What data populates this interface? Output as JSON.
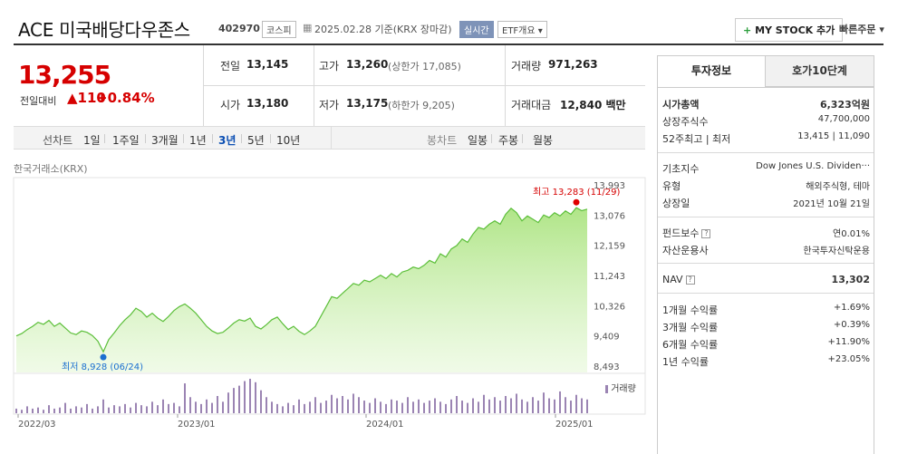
{
  "header": {
    "name": "ACE 미국배당다우존스",
    "code": "402970",
    "market": "코스피",
    "date_text": "2025.02.28 기준(KRX 장마감)",
    "live_badge": "실시간",
    "etf_badge": "ETF개요",
    "mystock_button": "MY STOCK 추가",
    "quick_order": "빠른주문"
  },
  "price": {
    "current": "13,255",
    "change_label": "전일대비",
    "change_value": "110",
    "change_pct": "+0.84%"
  },
  "summary": {
    "prev_label": "전일",
    "prev_value": "13,145",
    "high_label": "고가",
    "high_value": "13,260",
    "upper_limit": "(상한가 17,085)",
    "volume_label": "거래량",
    "volume_value": "971,263",
    "open_label": "시가",
    "open_value": "13,180",
    "low_label": "저가",
    "low_value": "13,175",
    "lower_limit": "(하한가 9,205)",
    "amount_label": "거래대금",
    "amount_value": "12,840 백만"
  },
  "periods": {
    "line_label": "선차트",
    "line_items": [
      "1일",
      "1주일",
      "3개월",
      "1년",
      "3년",
      "5년",
      "10년"
    ],
    "selected": "3년",
    "candle_label": "봉차트",
    "candle_items": [
      "일봉",
      "주봉",
      "월봉"
    ]
  },
  "chart_data": {
    "type": "area",
    "source_label": "한국거래소(KRX)",
    "y_ticks": [
      "13,993",
      "13,076",
      "12,159",
      "11,243",
      "10,326",
      "9,409",
      "8,493"
    ],
    "ylim": [
      8493,
      13993
    ],
    "x_ticks": [
      "2022/03",
      "2023/01",
      "2024/01",
      "2025/01"
    ],
    "max_label": "최고 13,283 (11/29)",
    "min_label": "최저 8,928 (06/24)",
    "volume_label": "거래량",
    "series": [
      {
        "values": [
          9409,
          9480,
          9600,
          9700,
          9820,
          9760,
          9880,
          9700,
          9800,
          9650,
          9500,
          9450,
          9560,
          9520,
          9420,
          9250,
          8928,
          9300,
          9500,
          9720,
          9900,
          10050,
          10250,
          10150,
          9980,
          10100,
          9950,
          9850,
          10000,
          10180,
          10300,
          10380,
          10250,
          10100,
          9900,
          9700,
          9560,
          9480,
          9520,
          9650,
          9800,
          9900,
          9860,
          9950,
          9700,
          9620,
          9750,
          9900,
          9980,
          9780,
          9600,
          9700,
          9550,
          9450,
          9560,
          9700,
          10000,
          10300,
          10600,
          10550,
          10700,
          10850,
          11000,
          10950,
          11100,
          11050,
          11150,
          11250,
          11150,
          11300,
          11200,
          11350,
          11400,
          11500,
          11450,
          11550,
          11700,
          11620,
          11900,
          11800,
          12050,
          12150,
          12350,
          12250,
          12500,
          12700,
          12650,
          12800,
          12900,
          12800,
          13100,
          13283,
          13150,
          12900,
          13050,
          12950,
          12850,
          13080,
          13000,
          13150,
          13050,
          13200,
          13100,
          13300,
          13210,
          13255
        ]
      }
    ],
    "volume": [
      4,
      3,
      6,
      4,
      5,
      3,
      7,
      4,
      5,
      9,
      4,
      6,
      5,
      8,
      4,
      6,
      12,
      5,
      7,
      6,
      8,
      5,
      9,
      7,
      6,
      10,
      7,
      12,
      8,
      9,
      6,
      26,
      14,
      10,
      8,
      12,
      9,
      15,
      10,
      18,
      22,
      24,
      28,
      30,
      27,
      20,
      14,
      10,
      8,
      6,
      9,
      7,
      12,
      8,
      10,
      14,
      9,
      11,
      16,
      13,
      15,
      12,
      17,
      14,
      11,
      9,
      13,
      10,
      8,
      12,
      11,
      9,
      14,
      10,
      12,
      9,
      11,
      13,
      10,
      8,
      12,
      15,
      11,
      9,
      13,
      10,
      16,
      12,
      14,
      11,
      15,
      13,
      17,
      12,
      10,
      14,
      11,
      18,
      13,
      12,
      19,
      14,
      11,
      16,
      13,
      12
    ]
  },
  "right_panel": {
    "tab_invest": "투자정보",
    "tab_quote": "호가10단계",
    "market_cap_label": "시가총액",
    "market_cap_value": "6,323억원",
    "shares_label": "상장주식수",
    "shares_value": "47,700,000",
    "range_label": "52주최고 | 최저",
    "range_value": "13,415 | 11,090",
    "index_label": "기초지수",
    "index_value": "Dow Jones U.S. Dividen···",
    "type_label": "유형",
    "type_value": "해외주식형, 테마",
    "listed_label": "상장일",
    "listed_value": "2021년 10월 21일",
    "fee_label": "펀드보수",
    "fee_value": "연0.01%",
    "manager_label": "자산운용사",
    "manager_value": "한국투자신탁운용",
    "nav_label": "NAV",
    "nav_value": "13,302",
    "ret1_label": "1개월 수익률",
    "ret1_value": "+1.69%",
    "ret3_label": "3개월 수익률",
    "ret3_value": "+0.39%",
    "ret6_label": "6개월 수익률",
    "ret6_value": "+11.90%",
    "ret12_label": "1년 수익률",
    "ret12_value": "+23.05%"
  }
}
